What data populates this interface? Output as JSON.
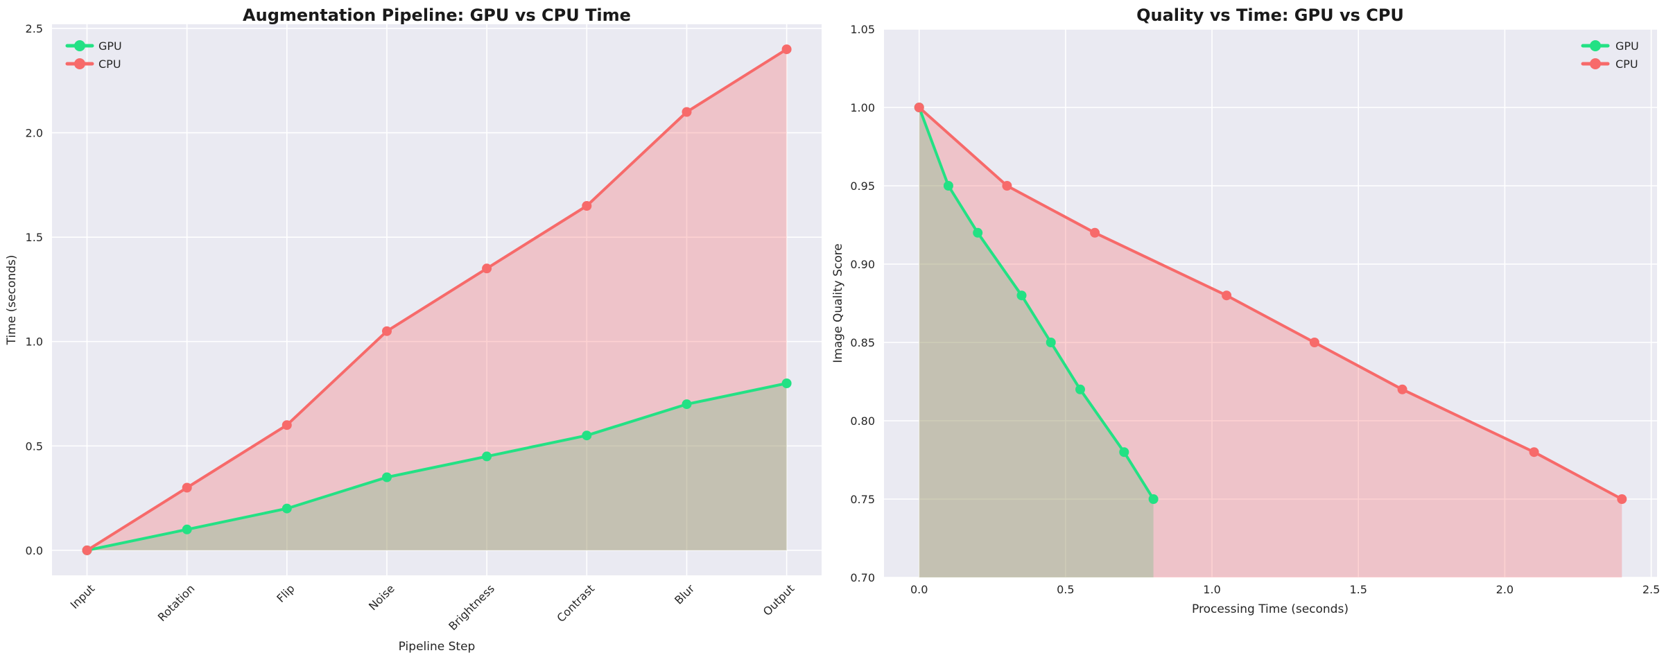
{
  "figure": {
    "background": "#ffffff",
    "plot_background": "#eaeaf2",
    "grid_color": "#ffffff",
    "text_color": "#262626",
    "title_color": "#1a1a1a"
  },
  "colors": {
    "gpu": "#23e184",
    "cpu": "#f76a6a"
  },
  "chart_data": [
    {
      "type": "line",
      "title": "Augmentation Pipeline: GPU vs CPU Time",
      "xlabel": "Pipeline Step",
      "ylabel": "Time (seconds)",
      "categories": [
        "Input",
        "Rotation",
        "Flip",
        "Noise",
        "Brightness",
        "Contrast",
        "Blur",
        "Output"
      ],
      "series": [
        {
          "name": "GPU",
          "color_key": "gpu",
          "values": [
            0.0,
            0.1,
            0.2,
            0.35,
            0.45,
            0.55,
            0.7,
            0.8
          ]
        },
        {
          "name": "CPU",
          "color_key": "cpu",
          "values": [
            0.0,
            0.3,
            0.6,
            1.05,
            1.35,
            1.65,
            2.1,
            2.4
          ]
        }
      ],
      "yticks": [
        0.0,
        0.5,
        1.0,
        1.5,
        2.0,
        2.5
      ],
      "ytick_labels": [
        "0.0",
        "0.5",
        "1.0",
        "1.5",
        "2.0",
        "2.5"
      ],
      "ylim": [
        -0.12,
        2.52
      ],
      "grid": true,
      "fill": "to_zero",
      "fill_opacity": 0.3,
      "xtick_rotation": 45,
      "legend_position": "top-left",
      "legend_entries": [
        "GPU",
        "CPU"
      ]
    },
    {
      "type": "line",
      "title": "Quality vs Time: GPU vs CPU",
      "xlabel": "Processing Time (seconds)",
      "ylabel": "Image Quality Score",
      "series": [
        {
          "name": "GPU",
          "color_key": "gpu",
          "x": [
            0.0,
            0.1,
            0.2,
            0.35,
            0.45,
            0.55,
            0.7,
            0.8
          ],
          "y": [
            1.0,
            0.95,
            0.92,
            0.88,
            0.85,
            0.82,
            0.78,
            0.75
          ]
        },
        {
          "name": "CPU",
          "color_key": "cpu",
          "x": [
            0.0,
            0.3,
            0.6,
            1.05,
            1.35,
            1.65,
            2.1,
            2.4
          ],
          "y": [
            1.0,
            0.95,
            0.92,
            0.88,
            0.85,
            0.82,
            0.78,
            0.75
          ]
        }
      ],
      "xticks": [
        0.0,
        0.5,
        1.0,
        1.5,
        2.0,
        2.5
      ],
      "xtick_labels": [
        "0.0",
        "0.5",
        "1.0",
        "1.5",
        "2.0",
        "2.5"
      ],
      "yticks": [
        0.7,
        0.75,
        0.8,
        0.85,
        0.9,
        0.95,
        1.0,
        1.05
      ],
      "ytick_labels": [
        "0.70",
        "0.75",
        "0.80",
        "0.85",
        "0.90",
        "0.95",
        "1.00",
        "1.05"
      ],
      "xlim": [
        -0.12,
        2.52
      ],
      "ylim": [
        0.7,
        1.05
      ],
      "grid": true,
      "fill": "to_bottom",
      "fill_opacity": 0.3,
      "legend_position": "top-right",
      "legend_entries": [
        "GPU",
        "CPU"
      ]
    }
  ]
}
